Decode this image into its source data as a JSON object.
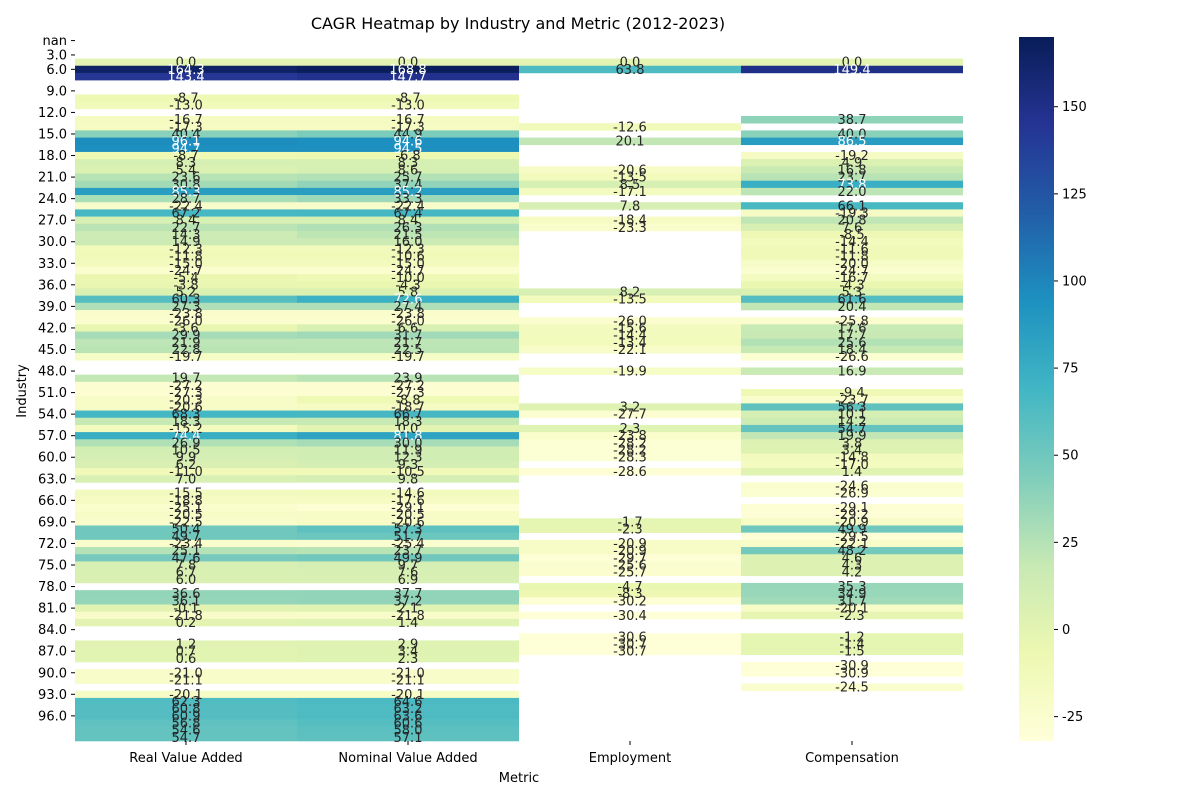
{
  "chart_data": {
    "type": "heatmap",
    "title": "CAGR Heatmap by Industry and Metric (2012-2023)",
    "xlabel": "Metric",
    "ylabel": "Industry",
    "columns": [
      "Real Value Added",
      "Nominal Value Added",
      "Employment",
      "Compensation"
    ],
    "y_tick_labels": [
      "nan",
      "3.0",
      "6.0",
      "9.0",
      "12.0",
      "15.0",
      "18.0",
      "21.0",
      "24.0",
      "27.0",
      "30.0",
      "33.0",
      "36.0",
      "39.0",
      "42.0",
      "45.0",
      "48.0",
      "51.0",
      "54.0",
      "57.0",
      "60.0",
      "63.0",
      "66.0",
      "69.0",
      "72.0",
      "75.0",
      "78.0",
      "81.0",
      "84.0",
      "87.0",
      "90.0",
      "93.0",
      "96.0"
    ],
    "y_tick_rows": [
      0,
      2,
      4,
      7,
      10,
      13,
      16,
      19,
      22,
      25,
      28,
      31,
      34,
      37,
      40,
      43,
      46,
      49,
      52,
      55,
      58,
      61,
      64,
      67,
      70,
      73,
      76,
      79,
      82,
      85,
      88,
      91,
      94
    ],
    "colorbar": {
      "colormap": "YlGnBu",
      "min": -32,
      "max": 170,
      "ticks": [
        "150",
        "125",
        "100",
        "75",
        "50",
        "25",
        "0",
        "-25"
      ]
    },
    "rows": [
      [
        "",
        "",
        "",
        ""
      ],
      [
        "",
        "",
        "",
        ""
      ],
      [
        "",
        "",
        "",
        ""
      ],
      [
        "0.0",
        "0.0",
        "0.0",
        "0.0"
      ],
      [
        "164.3",
        "168.8",
        "63.8",
        "149.4"
      ],
      [
        "143.4",
        "147.7",
        "",
        ""
      ],
      [
        "",
        "",
        "",
        ""
      ],
      [
        "",
        "",
        "",
        ""
      ],
      [
        "-8.7",
        "-8.7",
        "",
        ""
      ],
      [
        "-13.0",
        "-13.0",
        "",
        ""
      ],
      [
        "",
        "",
        "",
        ""
      ],
      [
        "-16.7",
        "-16.7",
        "",
        "38.7"
      ],
      [
        "-17.3",
        "-17.3",
        "-12.6",
        ""
      ],
      [
        "40.4",
        "44.9",
        "",
        "40.0"
      ],
      [
        "96.1",
        "94.6",
        "20.1",
        "86.5"
      ],
      [
        "94.7",
        "94.5",
        "",
        ""
      ],
      [
        "-8.7",
        "-6.8",
        "",
        "-19.2"
      ],
      [
        "8.3",
        "8.3",
        "",
        "4.9"
      ],
      [
        "5.4",
        "8.6",
        "-20.6",
        "16.8"
      ],
      [
        "23.6",
        "25.7",
        "-13.5",
        "23.7"
      ],
      [
        "30.8",
        "37.4",
        "8.5",
        "73.8"
      ],
      [
        "85.3",
        "85.2",
        "-17.1",
        "22.0"
      ],
      [
        "28.7",
        "33.3",
        "",
        ""
      ],
      [
        "-22.4",
        "-22.4",
        "7.8",
        "66.1"
      ],
      [
        "67.2",
        "67.4",
        "",
        "-19.3"
      ],
      [
        "8.4",
        "8.4",
        "-18.4",
        "20.8"
      ],
      [
        "22.7",
        "26.3",
        "-23.3",
        "7.6"
      ],
      [
        "14.3",
        "21.5",
        "",
        "-8.5"
      ],
      [
        "14.9",
        "16.0",
        "",
        "-14.4"
      ],
      [
        "-12.3",
        "-12.3",
        "",
        "-11.6"
      ],
      [
        "-11.8",
        "-10.6",
        "",
        "-11.8"
      ],
      [
        "-15.0",
        "-15.0",
        "",
        "-20.0"
      ],
      [
        "-24.7",
        "-24.7",
        "",
        "-24.7"
      ],
      [
        "-5.4",
        "-10.0",
        "",
        "-16.7"
      ],
      [
        "-3.8",
        "-4.3",
        "",
        "-4.3"
      ],
      [
        "5.2",
        "5.8",
        "8.2",
        "5.3"
      ],
      [
        "60.3",
        "72.6",
        "-13.5",
        "61.6"
      ],
      [
        "27.3",
        "27.4",
        "",
        "20.4"
      ],
      [
        "-23.8",
        "-23.8",
        "",
        ""
      ],
      [
        "-26.0",
        "-26.0",
        "-26.0",
        "-25.8"
      ],
      [
        "-3.6",
        "6.6",
        "-15.6",
        "17.6"
      ],
      [
        "29.9",
        "31.7",
        "-14.4",
        "17.7"
      ],
      [
        "21.9",
        "21.7",
        "-13.4",
        "25.6"
      ],
      [
        "22.8",
        "22.5",
        "-22.1",
        "18.4"
      ],
      [
        "-19.7",
        "-19.7",
        "",
        "-26.6"
      ],
      [
        "",
        "",
        "",
        ""
      ],
      [
        "",
        "",
        "-19.9",
        "16.9"
      ],
      [
        "19.7",
        "23.9",
        "",
        ""
      ],
      [
        "-27.2",
        "-27.2",
        "",
        ""
      ],
      [
        "-27.3",
        "-27.3",
        "",
        "-9.4"
      ],
      [
        "-20.3",
        "-8.8",
        "",
        "-23.7"
      ],
      [
        "-20.6",
        "-18.7",
        "3.2",
        "56.3"
      ],
      [
        "68.3",
        "66.7",
        "-27.7",
        "10.1"
      ],
      [
        "18.3",
        "18.3",
        "",
        "14.2"
      ],
      [
        "-15.2",
        "0.0",
        "2.3",
        "54.7"
      ],
      [
        "74.4",
        "81.8",
        "-23.8",
        "19.9"
      ],
      [
        "26.9",
        "30.0",
        "-28.2",
        "3.8"
      ],
      [
        "10.5",
        "11.9",
        "-28.2",
        "3.4"
      ],
      [
        "9.9",
        "12.3",
        "-28.3",
        "-14.8"
      ],
      [
        "6.2",
        "9.3",
        "",
        "-17.0"
      ],
      [
        "-11.0",
        "-10.5",
        "-28.6",
        "1.4"
      ],
      [
        "7.0",
        "9.8",
        "",
        ""
      ],
      [
        "",
        "",
        "",
        "-24.6"
      ],
      [
        "-15.5",
        "-14.6",
        "",
        "-26.9"
      ],
      [
        "-18.8",
        "-17.6",
        "",
        ""
      ],
      [
        "-25.1",
        "-29.1",
        "",
        "-29.1"
      ],
      [
        "-20.5",
        "-20.5",
        "",
        "-29.2"
      ],
      [
        "-22.5",
        "-20.6",
        "-1.7",
        "-20.9"
      ],
      [
        "50.4",
        "57.3",
        "-2.3",
        "49.9"
      ],
      [
        "49.7",
        "51.7",
        "",
        "-29.5"
      ],
      [
        "-23.4",
        "-25.4",
        "-20.9",
        "-22.1"
      ],
      [
        "25.1",
        "23.7",
        "-20.9",
        "48.2"
      ],
      [
        "47.6",
        "49.9",
        "-29.7",
        "4.6"
      ],
      [
        "7.8",
        "9.7",
        "-25.6",
        "4.3"
      ],
      [
        "6.7",
        "7.6",
        "-25.7",
        "4.2"
      ],
      [
        "6.0",
        "6.9",
        "",
        ""
      ],
      [
        "",
        "",
        "-4.7",
        "35.3"
      ],
      [
        "36.6",
        "37.7",
        "-8.3",
        "34.9"
      ],
      [
        "36.1",
        "37.2",
        "-30.2",
        "31.7"
      ],
      [
        "-0.1",
        "2.1",
        "",
        "-20.1"
      ],
      [
        "-21.8",
        "-21.8",
        "-30.4",
        "-2.3"
      ],
      [
        "0.2",
        "1.4",
        "",
        ""
      ],
      [
        "",
        "",
        "",
        ""
      ],
      [
        "",
        "",
        "-30.6",
        "-1.2"
      ],
      [
        "1.2",
        "2.9",
        "-30.7",
        "-1.4"
      ],
      [
        "0.7",
        "3.4",
        "-30.7",
        "-1.5"
      ],
      [
        "0.6",
        "2.3",
        "",
        ""
      ],
      [
        "",
        "",
        "",
        "-30.9"
      ],
      [
        "-21.0",
        "-21.0",
        "",
        "-30.9"
      ],
      [
        "-21.1",
        "-21.1",
        "",
        ""
      ],
      [
        "",
        "",
        "",
        "-24.5"
      ],
      [
        "-20.1",
        "-20.1",
        "",
        ""
      ],
      [
        "62.3",
        "64.6",
        "",
        ""
      ],
      [
        "60.8",
        "63.2",
        "",
        ""
      ],
      [
        "60.9",
        "63.6",
        "",
        ""
      ],
      [
        "56.8",
        "60.6",
        "",
        ""
      ],
      [
        "54.6",
        "58.0",
        "",
        ""
      ],
      [
        "54.7",
        "57.1",
        "",
        ""
      ]
    ]
  }
}
